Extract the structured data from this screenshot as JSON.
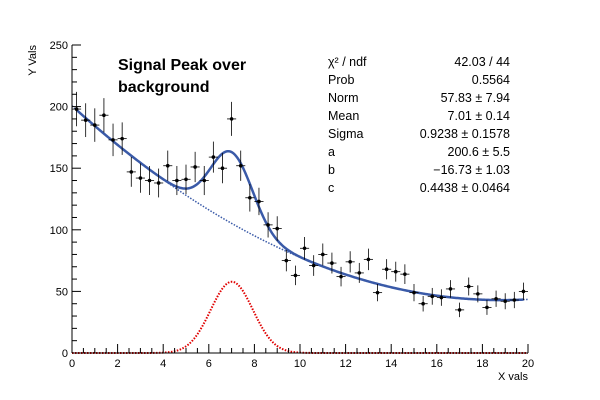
{
  "chart_data": {
    "type": "scatter",
    "title_lines": [
      "Signal Peak over",
      "background"
    ],
    "xlabel": "X vals",
    "ylabel": "Y Vals",
    "xlim": [
      0,
      20
    ],
    "ylim": [
      0,
      250
    ],
    "x_ticks": [
      0,
      2,
      4,
      6,
      8,
      10,
      12,
      14,
      16,
      18,
      20
    ],
    "y_ticks": [
      0,
      50,
      100,
      150,
      200,
      250
    ],
    "grid": false,
    "data_points": {
      "x": [
        0.2,
        0.6,
        1.0,
        1.4,
        1.8,
        2.2,
        2.6,
        3.0,
        3.4,
        3.8,
        4.2,
        4.6,
        5.0,
        5.4,
        5.8,
        6.2,
        6.6,
        7.0,
        7.4,
        7.8,
        8.2,
        8.6,
        9.0,
        9.4,
        9.8,
        10.2,
        10.6,
        11.0,
        11.4,
        11.8,
        12.2,
        12.6,
        13.0,
        13.4,
        13.8,
        14.2,
        14.6,
        15.0,
        15.4,
        15.8,
        16.2,
        16.6,
        17.0,
        17.4,
        17.8,
        18.2,
        18.6,
        19.0,
        19.4,
        19.8
      ],
      "y": [
        198,
        189,
        185,
        193,
        173,
        174,
        147,
        142,
        140,
        138,
        152,
        140,
        141,
        151,
        140,
        159,
        150,
        190,
        152,
        126,
        123,
        104,
        101,
        75,
        63,
        85,
        71,
        80,
        73,
        62,
        74,
        65,
        76,
        49,
        68,
        66,
        64,
        49,
        40,
        46,
        45,
        52,
        35,
        54,
        48,
        37,
        44,
        42,
        43,
        50
      ],
      "y_errors": [
        14,
        13.7,
        13.6,
        13.9,
        13.2,
        13.2,
        12.1,
        11.9,
        11.8,
        11.7,
        12.3,
        11.8,
        11.9,
        12.3,
        11.8,
        12.6,
        12.2,
        13.8,
        12.3,
        11.2,
        11.1,
        10.2,
        10.0,
        8.7,
        7.9,
        9.2,
        8.4,
        8.9,
        8.5,
        7.9,
        8.6,
        8.1,
        8.7,
        7.0,
        8.2,
        8.1,
        8.0,
        7.0,
        6.3,
        6.8,
        6.7,
        7.2,
        5.9,
        7.3,
        6.9,
        6.1,
        6.6,
        6.5,
        6.6,
        7.1
      ]
    },
    "fit": {
      "norm": 57.83,
      "mean": 7.01,
      "sigma": 0.9238,
      "a": 200.6,
      "b": -16.73,
      "c": 0.4438
    },
    "colors": {
      "total_fit": "#3a5aa8",
      "background": "#3a5aa8",
      "signal": "#e00000",
      "points": "#000000"
    },
    "stats": {
      "rows": [
        {
          "label": "χ² / ndf",
          "value": "42.03 / 44"
        },
        {
          "label": "Prob",
          "value": "0.5564"
        },
        {
          "label": "Norm",
          "value": "57.83 ± 7.94"
        },
        {
          "label": "Mean",
          "value": "7.01 ± 0.14"
        },
        {
          "label": "Sigma",
          "value": "0.9238 ± 0.1578"
        },
        {
          "label": "a",
          "value": "200.6 ± 5.5"
        },
        {
          "label": "b",
          "value": "−16.73 ± 1.03"
        },
        {
          "label": "c",
          "value": "0.4438 ± 0.0464"
        }
      ]
    }
  }
}
